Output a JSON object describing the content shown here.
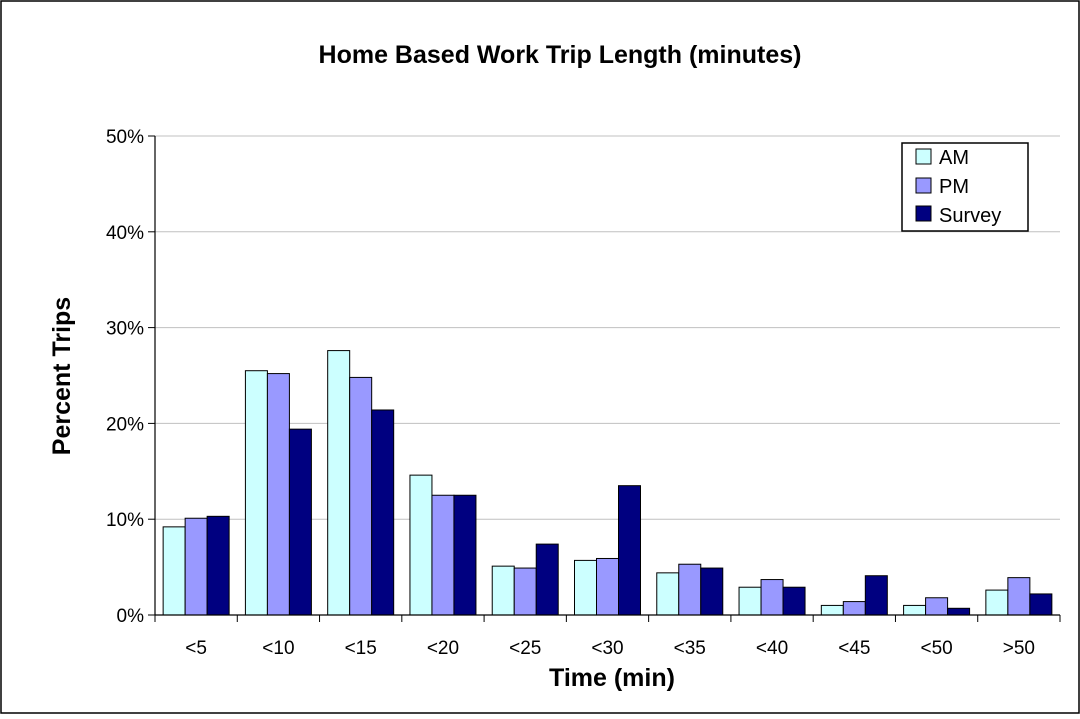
{
  "chart_data": {
    "type": "bar",
    "title": "Home Based Work Trip Length (minutes)",
    "xlabel": "Time (min)",
    "ylabel": "Percent Trips",
    "ylim": [
      0,
      50
    ],
    "yticks": [
      "0%",
      "10%",
      "20%",
      "30%",
      "40%",
      "50%"
    ],
    "ytick_values": [
      0,
      10,
      20,
      30,
      40,
      50
    ],
    "grid": true,
    "legend_position": "top-right",
    "categories": [
      "<5",
      "<10",
      "<15",
      "<20",
      "<25",
      "<30",
      "<35",
      "<40",
      "<45",
      "<50",
      ">50"
    ],
    "series": [
      {
        "name": "AM",
        "color": "#ccffff",
        "values": [
          9.2,
          25.5,
          27.6,
          14.6,
          5.1,
          5.7,
          4.4,
          2.9,
          1.0,
          1.0,
          2.6
        ]
      },
      {
        "name": "PM",
        "color": "#9999ff",
        "values": [
          10.1,
          25.2,
          24.8,
          12.5,
          4.9,
          5.9,
          5.3,
          3.7,
          1.4,
          1.8,
          3.9
        ]
      },
      {
        "name": "Survey",
        "color": "#000080",
        "values": [
          10.3,
          19.4,
          21.4,
          12.5,
          7.4,
          13.5,
          4.9,
          2.9,
          4.1,
          0.7,
          2.2
        ]
      }
    ]
  }
}
